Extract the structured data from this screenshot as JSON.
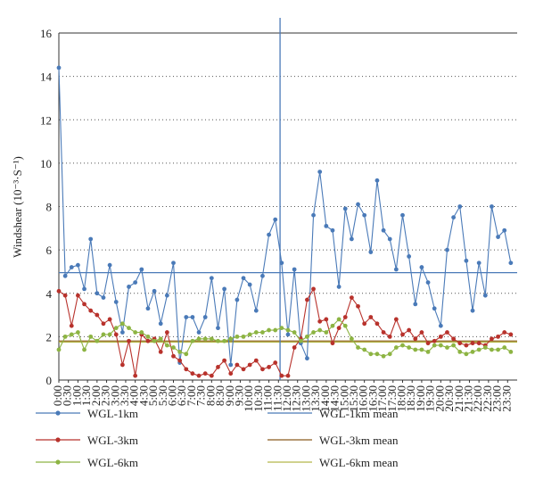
{
  "chart_data": {
    "type": "line",
    "y_label": "Windshear (10⁻³·S⁻¹)",
    "xlim": [
      0,
      1440
    ],
    "ylim": [
      0,
      16
    ],
    "yticks": [
      0,
      2,
      4,
      6,
      8,
      10,
      12,
      14,
      16
    ],
    "grid": true,
    "xticks": [
      {
        "value": 0,
        "label": "0:00"
      },
      {
        "value": 30,
        "label": "0:30"
      },
      {
        "value": 60,
        "label": "1:00"
      },
      {
        "value": 90,
        "label": "1:30"
      },
      {
        "value": 120,
        "label": "2:00"
      },
      {
        "value": 150,
        "label": "2:30"
      },
      {
        "value": 180,
        "label": "3:00"
      },
      {
        "value": 210,
        "label": "3:30"
      },
      {
        "value": 240,
        "label": "4:00"
      },
      {
        "value": 270,
        "label": "4:30"
      },
      {
        "value": 300,
        "label": "5:00"
      },
      {
        "value": 330,
        "label": "5:30"
      },
      {
        "value": 360,
        "label": "6:00"
      },
      {
        "value": 390,
        "label": "6:30"
      },
      {
        "value": 420,
        "label": "7:00"
      },
      {
        "value": 450,
        "label": "7:30"
      },
      {
        "value": 480,
        "label": "8:00"
      },
      {
        "value": 510,
        "label": "8:30"
      },
      {
        "value": 540,
        "label": "9:00"
      },
      {
        "value": 570,
        "label": "9:30"
      },
      {
        "value": 600,
        "label": "10:00"
      },
      {
        "value": 630,
        "label": "10:30"
      },
      {
        "value": 660,
        "label": "11:00"
      },
      {
        "value": 690,
        "label": "11:30"
      },
      {
        "value": 720,
        "label": "12:00"
      },
      {
        "value": 750,
        "label": "12:30"
      },
      {
        "value": 780,
        "label": "13:00"
      },
      {
        "value": 810,
        "label": "13:30"
      },
      {
        "value": 840,
        "label": "14:00"
      },
      {
        "value": 870,
        "label": "14:30"
      },
      {
        "value": 900,
        "label": "15:00"
      },
      {
        "value": 930,
        "label": "15:30"
      },
      {
        "value": 960,
        "label": "16:00"
      },
      {
        "value": 990,
        "label": "16:30"
      },
      {
        "value": 1020,
        "label": "17:00"
      },
      {
        "value": 1050,
        "label": "17:30"
      },
      {
        "value": 1080,
        "label": "18:00"
      },
      {
        "value": 1110,
        "label": "18:30"
      },
      {
        "value": 1140,
        "label": "19:00"
      },
      {
        "value": 1170,
        "label": "19:30"
      },
      {
        "value": 1200,
        "label": "20:00"
      },
      {
        "value": 1230,
        "label": "20:30"
      },
      {
        "value": 1260,
        "label": "21:00"
      },
      {
        "value": 1290,
        "label": "21:30"
      },
      {
        "value": 1320,
        "label": "22:00"
      },
      {
        "value": 1350,
        "label": "22:30"
      },
      {
        "value": 1380,
        "label": "23:00"
      },
      {
        "value": 1410,
        "label": "23:30"
      }
    ],
    "x": [
      0,
      20,
      40,
      60,
      80,
      100,
      120,
      140,
      160,
      180,
      200,
      220,
      240,
      260,
      280,
      300,
      320,
      340,
      360,
      380,
      400,
      420,
      440,
      460,
      480,
      500,
      520,
      540,
      560,
      580,
      600,
      620,
      640,
      660,
      680,
      700,
      720,
      740,
      760,
      780,
      800,
      820,
      840,
      860,
      880,
      900,
      920,
      940,
      960,
      980,
      1000,
      1020,
      1040,
      1060,
      1080,
      1100,
      1120,
      1140,
      1160,
      1180,
      1200,
      1220,
      1240,
      1260,
      1280,
      1300,
      1320,
      1340,
      1360,
      1380,
      1400,
      1420
    ],
    "series": [
      {
        "name": "WGL-1km",
        "color": "#4a7ab8",
        "values": [
          14.4,
          4.8,
          5.2,
          5.3,
          4.2,
          6.5,
          4.0,
          3.8,
          5.3,
          3.6,
          2.2,
          4.3,
          4.5,
          5.1,
          3.3,
          4.1,
          2.6,
          3.9,
          5.4,
          0.8,
          2.9,
          2.9,
          2.2,
          2.9,
          4.7,
          2.4,
          4.2,
          0.7,
          3.7,
          4.7,
          4.4,
          3.2,
          4.8,
          6.7,
          7.4,
          5.4,
          2.1,
          5.1,
          1.7,
          1.0,
          7.6,
          9.6,
          7.1,
          6.9,
          4.3,
          7.9,
          6.5,
          8.1,
          7.6,
          5.9,
          9.2,
          6.9,
          6.5,
          5.1,
          7.6,
          5.7,
          3.5,
          5.2,
          4.5,
          3.3,
          2.5,
          6.0,
          7.5,
          8.0,
          5.5,
          3.2,
          5.4,
          3.9,
          8.0,
          6.6,
          6.9,
          5.4
        ]
      },
      {
        "name": "WGL-3km",
        "color": "#b8322c",
        "values": [
          4.1,
          3.9,
          2.5,
          3.9,
          3.5,
          3.2,
          3.0,
          2.6,
          2.8,
          2.1,
          0.7,
          1.8,
          0.2,
          2.1,
          1.8,
          1.9,
          1.3,
          2.2,
          1.1,
          0.9,
          0.5,
          0.3,
          0.2,
          0.3,
          0.2,
          0.6,
          0.9,
          0.3,
          0.7,
          0.5,
          0.7,
          0.9,
          0.5,
          0.6,
          0.8,
          0.2,
          0.2,
          1.5,
          1.9,
          3.7,
          4.2,
          2.7,
          2.8,
          1.7,
          2.4,
          2.9,
          3.8,
          3.4,
          2.6,
          2.9,
          2.6,
          2.2,
          2.0,
          2.8,
          2.1,
          2.3,
          1.9,
          2.2,
          1.7,
          1.8,
          2.0,
          2.2,
          1.9,
          1.7,
          1.6,
          1.7,
          1.7,
          1.6,
          1.9,
          2.0,
          2.2,
          2.1
        ]
      },
      {
        "name": "WGL-6km",
        "color": "#8db443",
        "values": [
          1.4,
          2.0,
          2.1,
          2.2,
          1.4,
          2.0,
          1.8,
          2.1,
          2.1,
          2.4,
          2.6,
          2.4,
          2.2,
          2.2,
          2.0,
          1.8,
          1.9,
          1.6,
          1.5,
          1.3,
          1.2,
          1.8,
          1.9,
          1.9,
          1.9,
          1.8,
          1.8,
          1.9,
          2.0,
          2.0,
          2.1,
          2.2,
          2.2,
          2.3,
          2.3,
          2.4,
          2.3,
          2.2,
          1.8,
          2.0,
          2.2,
          2.3,
          2.2,
          2.5,
          2.8,
          2.5,
          1.9,
          1.5,
          1.4,
          1.2,
          1.2,
          1.1,
          1.2,
          1.5,
          1.6,
          1.5,
          1.4,
          1.4,
          1.3,
          1.6,
          1.6,
          1.5,
          1.6,
          1.3,
          1.2,
          1.3,
          1.4,
          1.5,
          1.4,
          1.4,
          1.5,
          1.3
        ]
      }
    ],
    "mean_lines": [
      {
        "name": "WGL-1km mean",
        "color": "#4a7ab8",
        "value": 4.95
      },
      {
        "name": "WGL-3km mean",
        "color": "#8b5a1e",
        "value": 1.8
      },
      {
        "name": "WGL-6km mean",
        "color": "#b5b84a",
        "value": 1.75
      }
    ],
    "vlines": [
      {
        "x": 695,
        "color": "#4a7ab8"
      }
    ]
  }
}
